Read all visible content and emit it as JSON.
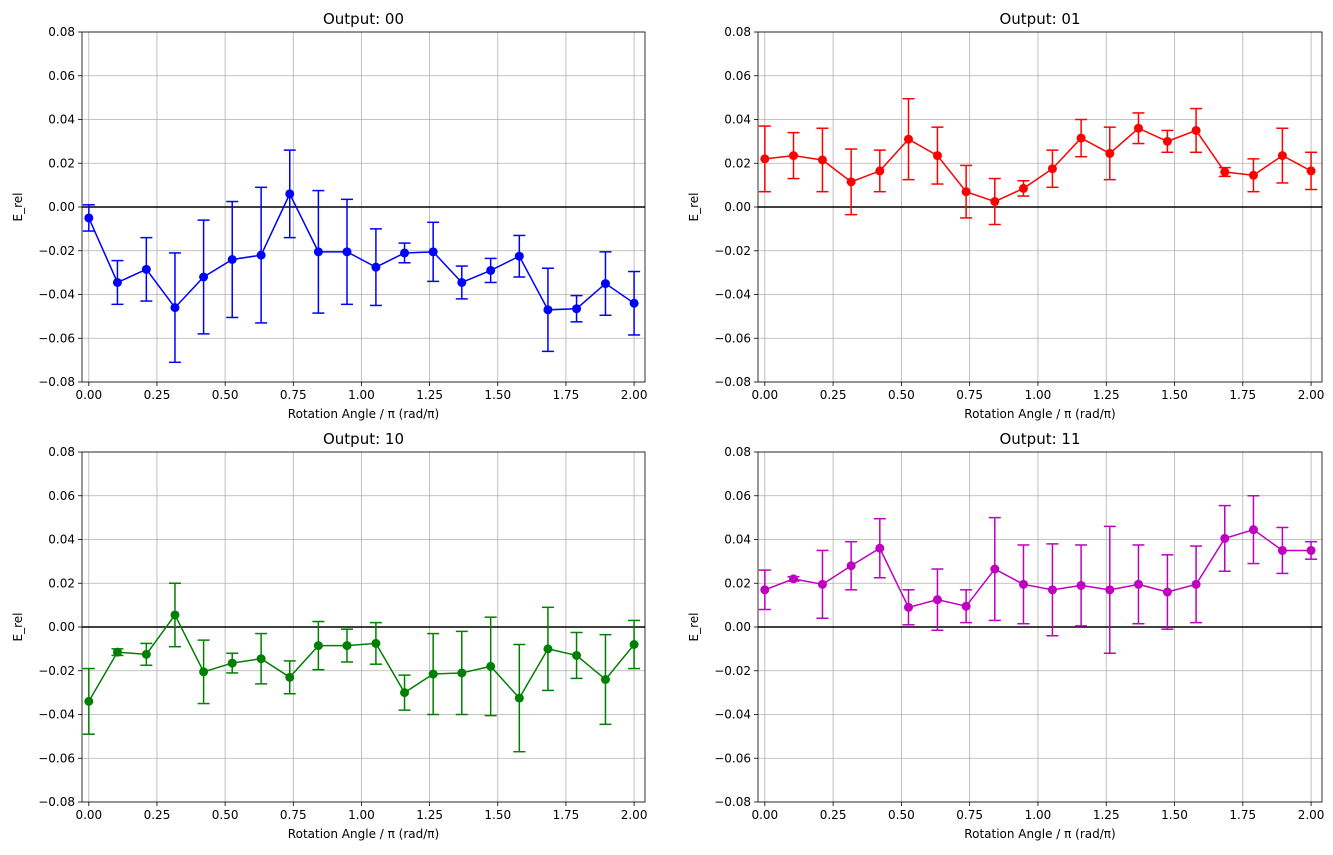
{
  "chart_data": [
    {
      "type": "line",
      "title": "Output: 00",
      "xlabel": "Rotation Angle / π (rad/π)",
      "ylabel": "E_rel",
      "color": "#0000ff",
      "xlim": [
        -0.025,
        2.04
      ],
      "ylim": [
        -0.08,
        0.08
      ],
      "xticks": [
        "0.00",
        "0.25",
        "0.50",
        "0.75",
        "1.00",
        "1.25",
        "1.50",
        "1.75",
        "2.00"
      ],
      "yticks": [
        "−0.08",
        "−0.06",
        "−0.04",
        "−0.02",
        "0.00",
        "0.02",
        "0.04",
        "0.06",
        "0.08"
      ],
      "grid": true,
      "reference_line_y": 0,
      "x": [
        0.0,
        0.105,
        0.211,
        0.316,
        0.421,
        0.526,
        0.632,
        0.737,
        0.842,
        0.947,
        1.053,
        1.158,
        1.263,
        1.368,
        1.474,
        1.579,
        1.684,
        1.789,
        1.895,
        2.0
      ],
      "y": [
        -0.005,
        -0.0345,
        -0.0285,
        -0.046,
        -0.032,
        -0.024,
        -0.022,
        0.006,
        -0.0205,
        -0.0205,
        -0.0275,
        -0.021,
        -0.0205,
        -0.0345,
        -0.029,
        -0.0225,
        -0.047,
        -0.0465,
        -0.035,
        -0.044
      ],
      "yerr": [
        0.006,
        0.01,
        0.0145,
        0.025,
        0.026,
        0.0265,
        0.031,
        0.02,
        0.028,
        0.024,
        0.0175,
        0.0045,
        0.0135,
        0.0075,
        0.0055,
        0.0095,
        0.019,
        0.006,
        0.0145,
        0.0145
      ]
    },
    {
      "type": "line",
      "title": "Output: 01",
      "xlabel": "Rotation Angle / π (rad/π)",
      "ylabel": "E_rel",
      "color": "#ff0000",
      "xlim": [
        -0.025,
        2.04
      ],
      "ylim": [
        -0.08,
        0.08
      ],
      "xticks": [
        "0.00",
        "0.25",
        "0.50",
        "0.75",
        "1.00",
        "1.25",
        "1.50",
        "1.75",
        "2.00"
      ],
      "yticks": [
        "−0.08",
        "−0.06",
        "−0.04",
        "−0.02",
        "0.00",
        "0.02",
        "0.04",
        "0.06",
        "0.08"
      ],
      "grid": true,
      "reference_line_y": 0,
      "x": [
        0.0,
        0.105,
        0.211,
        0.316,
        0.421,
        0.526,
        0.632,
        0.737,
        0.842,
        0.947,
        1.053,
        1.158,
        1.263,
        1.368,
        1.474,
        1.579,
        1.684,
        1.789,
        1.895,
        2.0
      ],
      "y": [
        0.022,
        0.0235,
        0.0215,
        0.0115,
        0.0165,
        0.031,
        0.0235,
        0.007,
        0.0025,
        0.0085,
        0.0175,
        0.0315,
        0.0245,
        0.036,
        0.03,
        0.035,
        0.016,
        0.0145,
        0.0235,
        0.0165
      ],
      "yerr": [
        0.015,
        0.0105,
        0.0145,
        0.015,
        0.0095,
        0.0185,
        0.013,
        0.012,
        0.0105,
        0.0035,
        0.0085,
        0.0085,
        0.012,
        0.007,
        0.005,
        0.01,
        0.002,
        0.0075,
        0.0125,
        0.0085
      ]
    },
    {
      "type": "line",
      "title": "Output: 10",
      "xlabel": "Rotation Angle / π (rad/π)",
      "ylabel": "E_rel",
      "color": "#008000",
      "xlim": [
        -0.025,
        2.04
      ],
      "ylim": [
        -0.08,
        0.08
      ],
      "xticks": [
        "0.00",
        "0.25",
        "0.50",
        "0.75",
        "1.00",
        "1.25",
        "1.50",
        "1.75",
        "2.00"
      ],
      "yticks": [
        "−0.08",
        "−0.06",
        "−0.04",
        "−0.02",
        "0.00",
        "0.02",
        "0.04",
        "0.06",
        "0.08"
      ],
      "grid": true,
      "reference_line_y": 0,
      "x": [
        0.0,
        0.105,
        0.211,
        0.316,
        0.421,
        0.526,
        0.632,
        0.737,
        0.842,
        0.947,
        1.053,
        1.158,
        1.263,
        1.368,
        1.474,
        1.579,
        1.684,
        1.789,
        1.895,
        2.0
      ],
      "y": [
        -0.034,
        -0.0115,
        -0.0125,
        0.0055,
        -0.0205,
        -0.0165,
        -0.0145,
        -0.023,
        -0.0085,
        -0.0085,
        -0.0075,
        -0.03,
        -0.0215,
        -0.021,
        -0.018,
        -0.0325,
        -0.01,
        -0.013,
        -0.024,
        -0.008
      ],
      "yerr": [
        0.015,
        0.0015,
        0.005,
        0.0145,
        0.0145,
        0.0045,
        0.0115,
        0.0075,
        0.011,
        0.0075,
        0.0095,
        0.008,
        0.0185,
        0.019,
        0.0225,
        0.0245,
        0.019,
        0.0105,
        0.0205,
        0.011
      ]
    },
    {
      "type": "line",
      "title": "Output: 11",
      "xlabel": "Rotation Angle / π (rad/π)",
      "ylabel": "E_rel",
      "color": "#bf00bf",
      "xlim": [
        -0.025,
        2.04
      ],
      "ylim": [
        -0.08,
        0.08
      ],
      "xticks": [
        "0.00",
        "0.25",
        "0.50",
        "0.75",
        "1.00",
        "1.25",
        "1.50",
        "1.75",
        "2.00"
      ],
      "yticks": [
        "−0.08",
        "−0.06",
        "−0.04",
        "−0.02",
        "0.00",
        "0.02",
        "0.04",
        "0.06",
        "0.08"
      ],
      "grid": true,
      "reference_line_y": 0,
      "x": [
        0.0,
        0.105,
        0.211,
        0.316,
        0.421,
        0.526,
        0.632,
        0.737,
        0.842,
        0.947,
        1.053,
        1.158,
        1.263,
        1.368,
        1.474,
        1.579,
        1.684,
        1.789,
        1.895,
        2.0
      ],
      "y": [
        0.017,
        0.022,
        0.0195,
        0.028,
        0.036,
        0.009,
        0.0125,
        0.0095,
        0.0265,
        0.0195,
        0.017,
        0.019,
        0.017,
        0.0195,
        0.016,
        0.0195,
        0.0405,
        0.0445,
        0.035,
        0.035
      ],
      "yerr": [
        0.009,
        0.001,
        0.0155,
        0.011,
        0.0135,
        0.008,
        0.014,
        0.0075,
        0.0235,
        0.018,
        0.021,
        0.0185,
        0.029,
        0.018,
        0.017,
        0.0175,
        0.015,
        0.0155,
        0.0105,
        0.004
      ]
    }
  ]
}
